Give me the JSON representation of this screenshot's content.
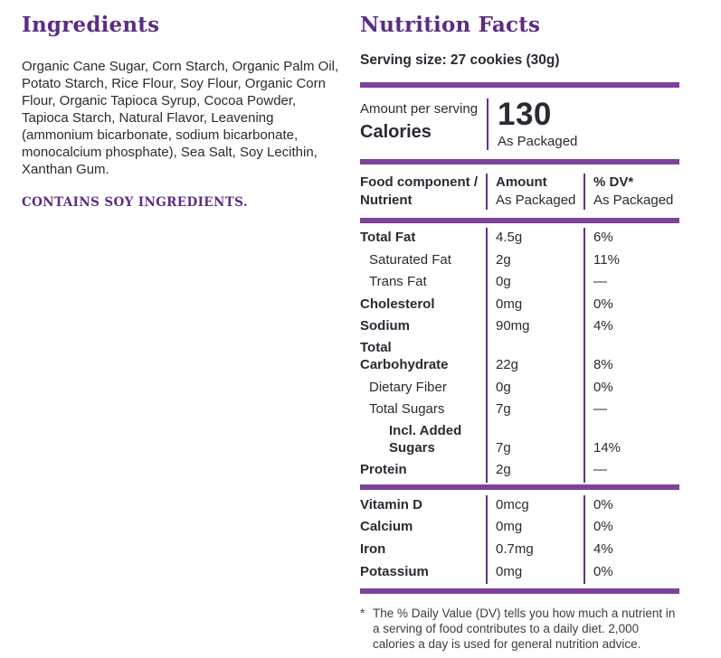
{
  "colors": {
    "heading_purple": "#5b2d85",
    "bar_purple": "#7b4399",
    "divider_line_purple": "#5f3191",
    "body_text": "#2b2a33"
  },
  "ingredients": {
    "title": "Ingredients",
    "body": "Organic Cane Sugar, Corn Starch, Organic Palm Oil, Potato Starch, Rice Flour, Soy Flour, Organic Corn Flour, Organic Tapioca Syrup, Cocoa Powder, Tapioca Starch, Natural Flavor, Leavening (ammonium bicarbonate, sodium bicarbonate, monocalcium phosphate), Sea Salt, Soy Lecithin, Xanthan Gum.",
    "allergen": "CONTAINS SOY INGREDIENTS."
  },
  "nutrition": {
    "title": "Nutrition Facts",
    "serving_size": "Serving size: 27 cookies (30g)",
    "calories": {
      "amount_per_serving_label": "Amount per serving",
      "label": "Calories",
      "value": "130",
      "qualifier": "As Packaged"
    },
    "table": {
      "header": {
        "col1_line1": "Food component /",
        "col1_line2": "Nutrient",
        "col2_line1": "Amount",
        "col2_line2": "As Packaged",
        "col3_line1": "% DV*",
        "col3_line2": "As Packaged"
      },
      "rows": [
        {
          "name": "Total Fat",
          "amount": "4.5g",
          "dv": "6%"
        },
        {
          "name": "Saturated Fat",
          "amount": "2g",
          "dv": "11%"
        },
        {
          "name": "Trans Fat",
          "amount": "0g",
          "dv": "—"
        },
        {
          "name": "Cholesterol",
          "amount": "0mg",
          "dv": "0%"
        },
        {
          "name": "Sodium",
          "amount": "90mg",
          "dv": "4%"
        },
        {
          "name": "Total Carbohydrate",
          "amount": "22g",
          "dv": "8%"
        },
        {
          "name": "Dietary Fiber",
          "amount": "0g",
          "dv": "0%"
        },
        {
          "name": "Total Sugars",
          "amount": "7g",
          "dv": "—"
        },
        {
          "name": "Incl. Added Sugars",
          "amount": "7g",
          "dv": "14%"
        },
        {
          "name": "Protein",
          "amount": "2g",
          "dv": "—"
        }
      ],
      "vitamin_rows": [
        {
          "name": "Vitamin D",
          "amount": "0mcg",
          "dv": "0%"
        },
        {
          "name": "Calcium",
          "amount": "0mg",
          "dv": "0%"
        },
        {
          "name": "Iron",
          "amount": "0.7mg",
          "dv": "4%"
        },
        {
          "name": "Potassium",
          "amount": "0mg",
          "dv": "0%"
        }
      ]
    },
    "footnote": {
      "marker": "*",
      "text": "The % Daily Value (DV) tells you how much a nutrient in a serving of food contributes to a daily diet. 2,000 calories a day is used for general nutrition advice."
    }
  }
}
